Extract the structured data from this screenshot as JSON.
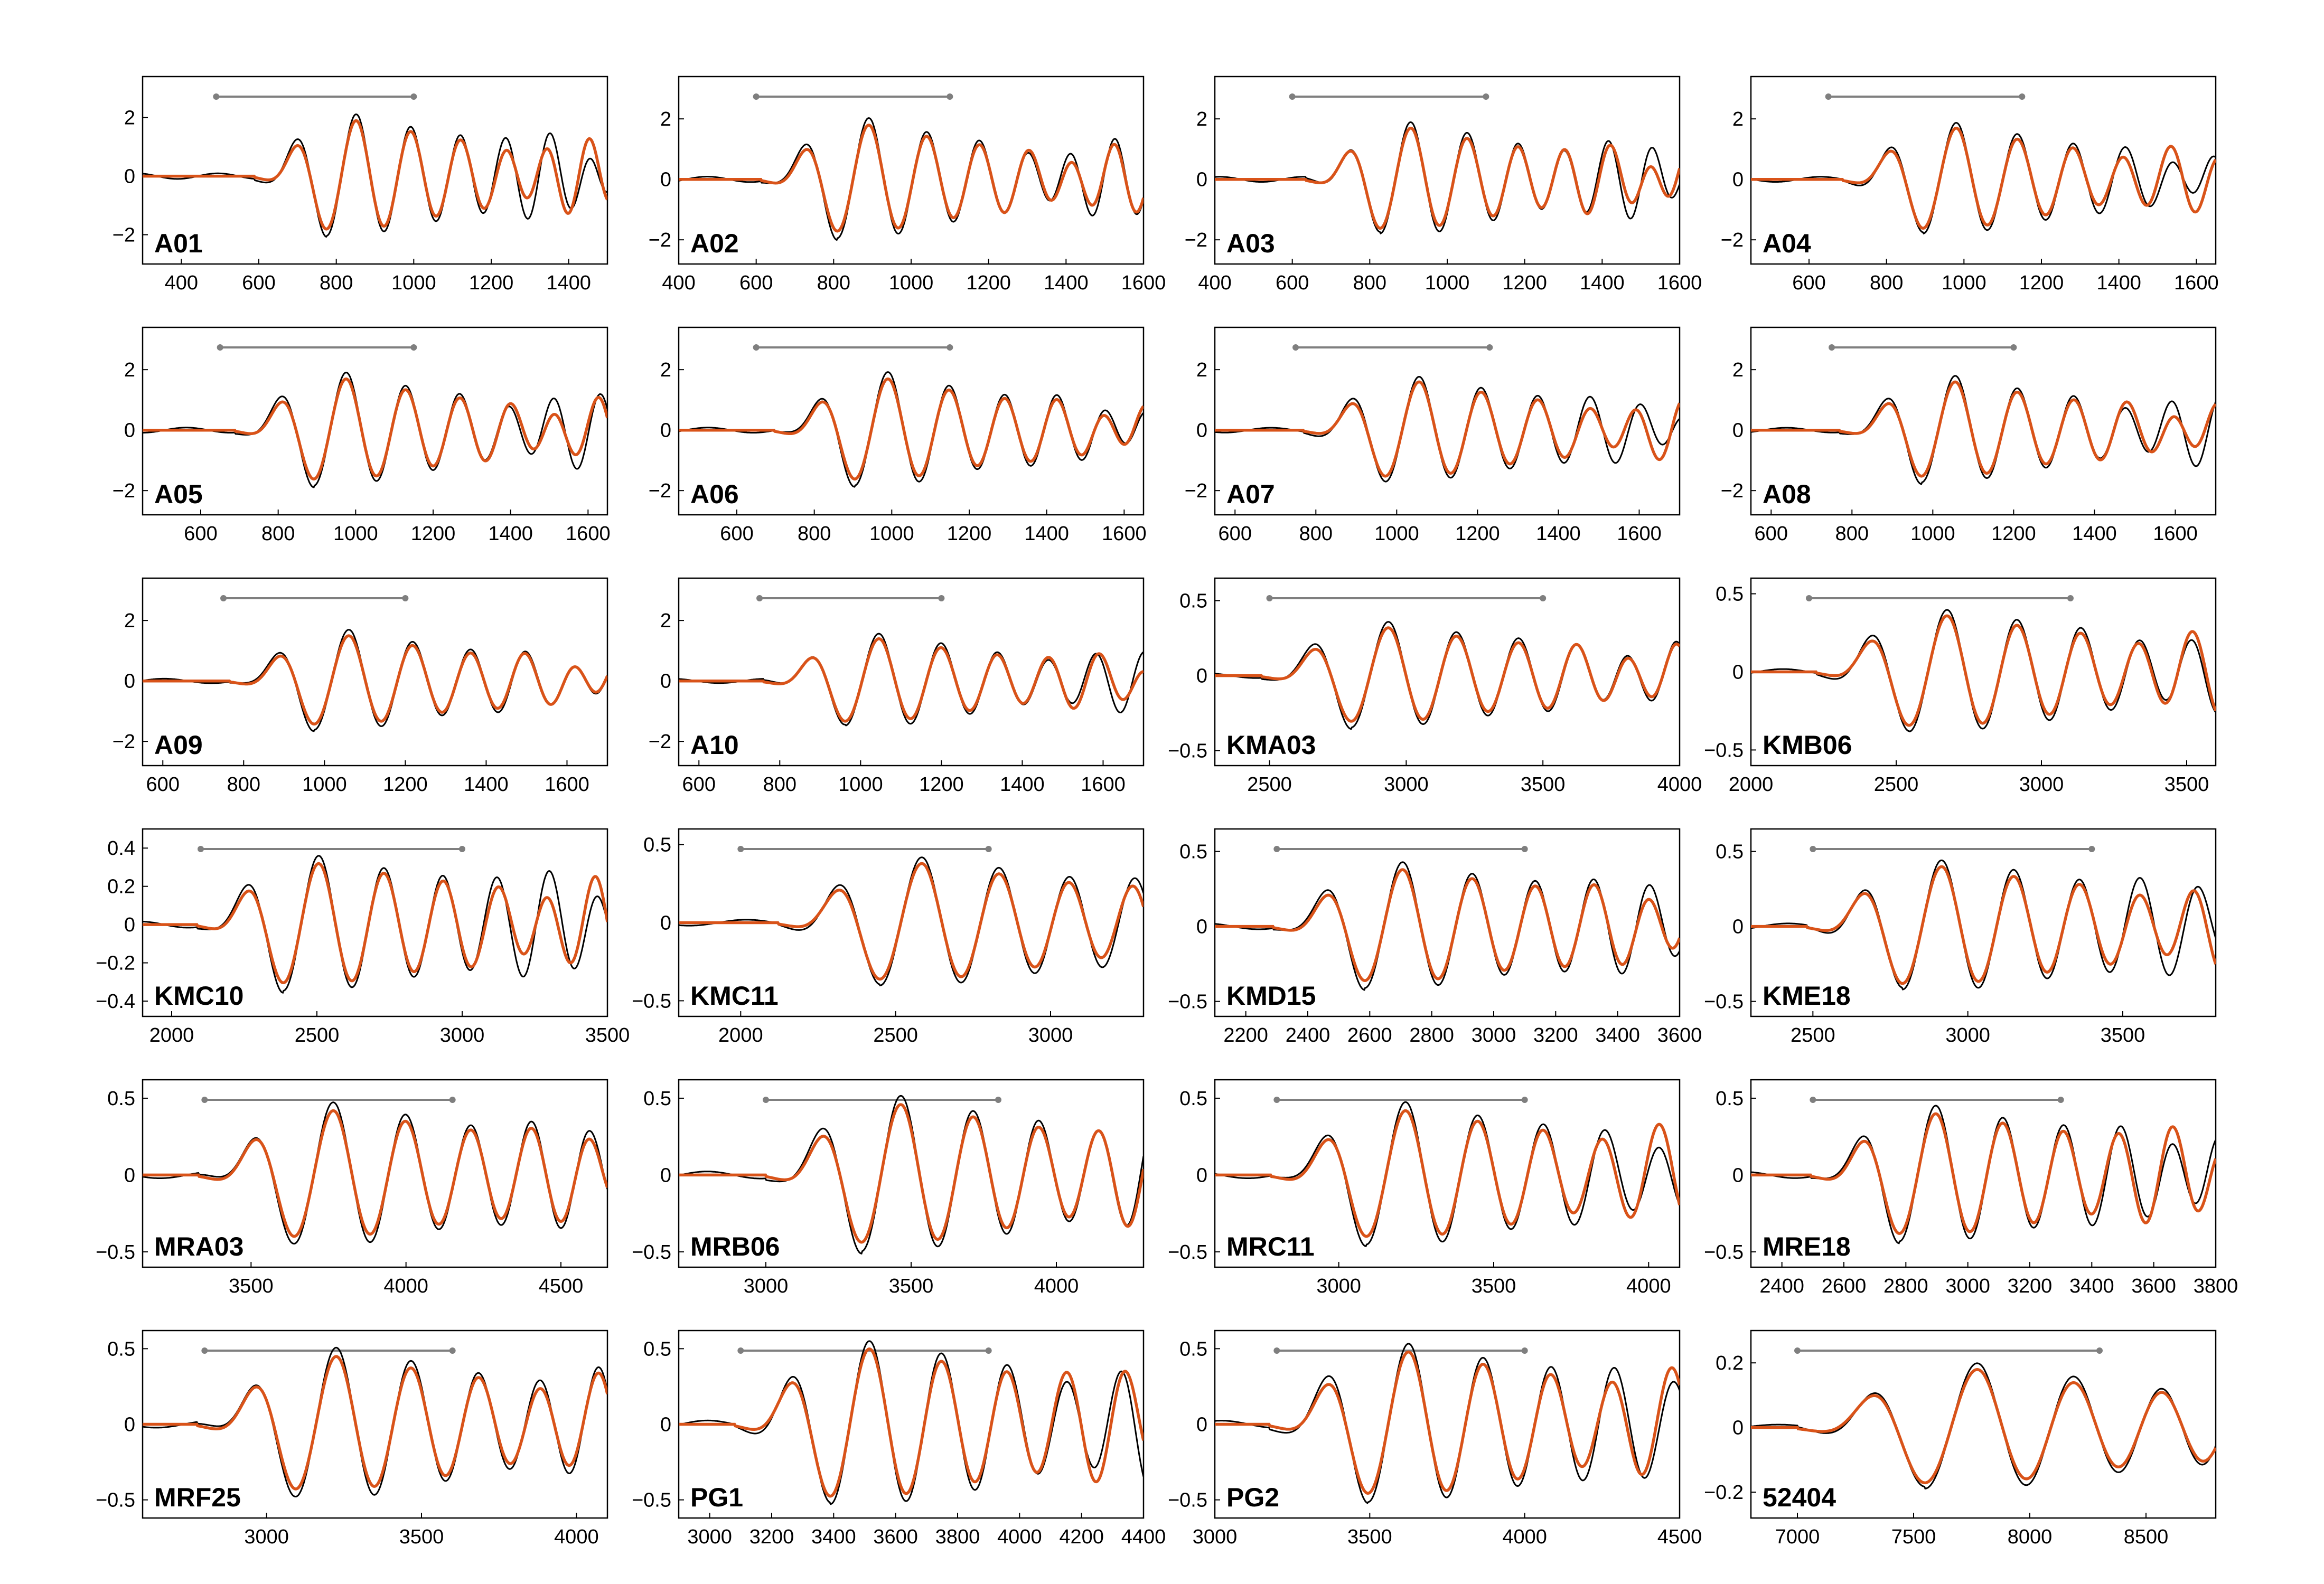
{
  "colors": {
    "observed": "#000000",
    "synthetic": "#d95319",
    "window": "#7f7f7f",
    "frame": "#000000"
  },
  "chart_data": [
    {
      "type": "line",
      "station": "A01",
      "xlim": [
        300,
        1500
      ],
      "ylim": [
        -3.0,
        3.4
      ],
      "xticks": [
        400,
        600,
        800,
        1000,
        1200,
        1400
      ],
      "yticks": [
        -2,
        0,
        2
      ],
      "window": [
        490,
        1000
      ],
      "onset": 690,
      "period": 170,
      "decay": 600,
      "amp": 1.9
    },
    {
      "type": "line",
      "station": "A02",
      "xlim": [
        400,
        1600
      ],
      "ylim": [
        -2.8,
        3.4
      ],
      "xticks": [
        400,
        600,
        800,
        1000,
        1200,
        1400,
        1600
      ],
      "yticks": [
        -2,
        0,
        2
      ],
      "window": [
        600,
        1100
      ],
      "onset": 720,
      "period": 180,
      "decay": 600,
      "amp": 1.8
    },
    {
      "type": "line",
      "station": "A03",
      "xlim": [
        400,
        1600
      ],
      "ylim": [
        -2.8,
        3.4
      ],
      "xticks": [
        400,
        600,
        800,
        1000,
        1200,
        1400,
        1600
      ],
      "yticks": [
        -2,
        0,
        2
      ],
      "window": [
        600,
        1100
      ],
      "onset": 740,
      "period": 175,
      "decay": 600,
      "amp": 1.7
    },
    {
      "type": "line",
      "station": "A04",
      "xlim": [
        450,
        1650
      ],
      "ylim": [
        -2.8,
        3.4
      ],
      "xticks": [
        600,
        800,
        1000,
        1200,
        1400,
        1600
      ],
      "yticks": [
        -2,
        0,
        2
      ],
      "window": [
        650,
        1150
      ],
      "onset": 800,
      "period": 190,
      "decay": 600,
      "amp": 1.7
    },
    {
      "type": "line",
      "station": "A05",
      "xlim": [
        450,
        1650
      ],
      "ylim": [
        -2.8,
        3.4
      ],
      "xticks": [
        600,
        800,
        1000,
        1200,
        1400,
        1600
      ],
      "yticks": [
        -2,
        0,
        2
      ],
      "window": [
        650,
        1150
      ],
      "onset": 800,
      "period": 185,
      "decay": 600,
      "amp": 1.7
    },
    {
      "type": "line",
      "station": "A06",
      "xlim": [
        450,
        1650
      ],
      "ylim": [
        -2.8,
        3.4
      ],
      "xticks": [
        600,
        800,
        1000,
        1200,
        1400,
        1600
      ],
      "yticks": [
        -2,
        0,
        2
      ],
      "window": [
        650,
        1150
      ],
      "onset": 810,
      "period": 190,
      "decay": 600,
      "amp": 1.7
    },
    {
      "type": "line",
      "station": "A07",
      "xlim": [
        550,
        1700
      ],
      "ylim": [
        -2.8,
        3.4
      ],
      "xticks": [
        600,
        800,
        1000,
        1200,
        1400,
        1600
      ],
      "yticks": [
        -2,
        0,
        2
      ],
      "window": [
        750,
        1230
      ],
      "onset": 880,
      "period": 185,
      "decay": 600,
      "amp": 1.6
    },
    {
      "type": "line",
      "station": "A08",
      "xlim": [
        550,
        1700
      ],
      "ylim": [
        -2.8,
        3.4
      ],
      "xticks": [
        600,
        800,
        1000,
        1200,
        1400,
        1600
      ],
      "yticks": [
        -2,
        0,
        2
      ],
      "window": [
        750,
        1200
      ],
      "onset": 880,
      "period": 185,
      "decay": 600,
      "amp": 1.6
    },
    {
      "type": "line",
      "station": "A09",
      "xlim": [
        550,
        1700
      ],
      "ylim": [
        -2.8,
        3.4
      ],
      "xticks": [
        600,
        800,
        1000,
        1200,
        1400,
        1600
      ],
      "yticks": [
        -2,
        0,
        2
      ],
      "window": [
        750,
        1200
      ],
      "onset": 880,
      "period": 190,
      "decay": 600,
      "amp": 1.5
    },
    {
      "type": "line",
      "station": "A10",
      "xlim": [
        550,
        1700
      ],
      "ylim": [
        -2.8,
        3.4
      ],
      "xticks": [
        600,
        800,
        1000,
        1200,
        1400,
        1600
      ],
      "yticks": [
        -2,
        0,
        2
      ],
      "window": [
        750,
        1200
      ],
      "onset": 870,
      "period": 185,
      "decay": 600,
      "amp": 1.4
    },
    {
      "type": "line",
      "station": "KMA03",
      "xlim": [
        2300,
        4000
      ],
      "ylim": [
        -0.6,
        0.65
      ],
      "xticks": [
        2500,
        3000,
        3500,
        4000
      ],
      "yticks": [
        -0.5,
        0,
        0.5
      ],
      "window": [
        2500,
        3500
      ],
      "onset": 2650,
      "period": 300,
      "decay": 1200,
      "amp": 0.32
    },
    {
      "type": "line",
      "station": "KMB06",
      "xlim": [
        2000,
        3600
      ],
      "ylim": [
        -0.6,
        0.6
      ],
      "xticks": [
        2000,
        2500,
        3000,
        3500
      ],
      "yticks": [
        -0.5,
        0,
        0.5
      ],
      "window": [
        2200,
        3100
      ],
      "onset": 2400,
      "period": 290,
      "decay": 1200,
      "amp": 0.36
    },
    {
      "type": "line",
      "station": "KMC10",
      "xlim": [
        1900,
        3500
      ],
      "ylim": [
        -0.48,
        0.5
      ],
      "xticks": [
        2000,
        2500,
        3000,
        3500
      ],
      "yticks": [
        -0.4,
        -0.2,
        0,
        0.2,
        0.4
      ],
      "window": [
        2100,
        3000
      ],
      "onset": 2250,
      "period": 270,
      "decay": 1200,
      "amp": 0.32
    },
    {
      "type": "line",
      "station": "KMC11",
      "xlim": [
        1800,
        3300
      ],
      "ylim": [
        -0.6,
        0.6
      ],
      "xticks": [
        2000,
        2500,
        3000
      ],
      "yticks": [
        -0.5,
        0,
        0.5
      ],
      "window": [
        2000,
        2800
      ],
      "onset": 2300,
      "period": 300,
      "decay": 1200,
      "amp": 0.38
    },
    {
      "type": "line",
      "station": "KMD15",
      "xlim": [
        2100,
        3600
      ],
      "ylim": [
        -0.6,
        0.65
      ],
      "xticks": [
        2200,
        2400,
        2600,
        2800,
        3000,
        3200,
        3400,
        3600
      ],
      "yticks": [
        -0.5,
        0,
        0.5
      ],
      "window": [
        2300,
        3100
      ],
      "onset": 2450,
      "period": 270,
      "decay": 1200,
      "amp": 0.38
    },
    {
      "type": "line",
      "station": "KME18",
      "xlim": [
        2300,
        3800
      ],
      "ylim": [
        -0.6,
        0.65
      ],
      "xticks": [
        2500,
        3000,
        3500
      ],
      "yticks": [
        -0.5,
        0,
        0.5
      ],
      "window": [
        2500,
        3400
      ],
      "onset": 2650,
      "period": 280,
      "decay": 1200,
      "amp": 0.4
    },
    {
      "type": "line",
      "station": "MRA03",
      "xlim": [
        3150,
        4650
      ],
      "ylim": [
        -0.6,
        0.62
      ],
      "xticks": [
        3500,
        4000,
        4500
      ],
      "yticks": [
        -0.5,
        0,
        0.5
      ],
      "window": [
        3350,
        4150
      ],
      "onset": 3500,
      "period": 280,
      "decay": 1200,
      "amp": 0.42
    },
    {
      "type": "line",
      "station": "MRB06",
      "xlim": [
        2700,
        4300
      ],
      "ylim": [
        -0.6,
        0.62
      ],
      "xticks": [
        3000,
        3500,
        4000
      ],
      "yticks": [
        -0.5,
        0,
        0.5
      ],
      "window": [
        3000,
        3800
      ],
      "onset": 3180,
      "period": 300,
      "decay": 1200,
      "amp": 0.46
    },
    {
      "type": "line",
      "station": "MRC11",
      "xlim": [
        2600,
        4100
      ],
      "ylim": [
        -0.6,
        0.62
      ],
      "xticks": [
        3000,
        3500,
        4000
      ],
      "yticks": [
        -0.5,
        0,
        0.5
      ],
      "window": [
        2800,
        3600
      ],
      "onset": 2950,
      "period": 280,
      "decay": 1200,
      "amp": 0.42
    },
    {
      "type": "line",
      "station": "MRE18",
      "xlim": [
        2300,
        3800
      ],
      "ylim": [
        -0.6,
        0.62
      ],
      "xticks": [
        2400,
        2600,
        2800,
        3000,
        3200,
        3400,
        3600,
        3800
      ],
      "yticks": [
        -0.5,
        0,
        0.5
      ],
      "window": [
        2500,
        3300
      ],
      "onset": 2650,
      "period": 260,
      "decay": 1200,
      "amp": 0.4
    },
    {
      "type": "line",
      "station": "MRF25",
      "xlim": [
        2600,
        4100
      ],
      "ylim": [
        -0.62,
        0.62
      ],
      "xticks": [
        3000,
        3500,
        4000
      ],
      "yticks": [
        -0.5,
        0,
        0.5
      ],
      "window": [
        2800,
        3600
      ],
      "onset": 2950,
      "period": 290,
      "decay": 1200,
      "amp": 0.45
    },
    {
      "type": "line",
      "station": "PG1",
      "xlim": [
        2900,
        4400
      ],
      "ylim": [
        -0.62,
        0.62
      ],
      "xticks": [
        3000,
        3200,
        3400,
        3600,
        3800,
        4000,
        4200,
        4400
      ],
      "yticks": [
        -0.5,
        0,
        0.5
      ],
      "window": [
        3100,
        3900
      ],
      "onset": 3250,
      "period": 280,
      "decay": 1200,
      "amp": 0.5
    },
    {
      "type": "line",
      "station": "PG2",
      "xlim": [
        3000,
        4500
      ],
      "ylim": [
        -0.62,
        0.62
      ],
      "xticks": [
        3000,
        3500,
        4000,
        4500
      ],
      "yticks": [
        -0.5,
        0,
        0.5
      ],
      "window": [
        3200,
        4000
      ],
      "onset": 3350,
      "period": 290,
      "decay": 1200,
      "amp": 0.48
    },
    {
      "type": "line",
      "station": "52404",
      "xlim": [
        6800,
        8800
      ],
      "ylim": [
        -0.28,
        0.3
      ],
      "xticks": [
        7000,
        7500,
        8000,
        8500
      ],
      "yticks": [
        -0.2,
        0,
        0.2
      ],
      "window": [
        7000,
        8300
      ],
      "onset": 7300,
      "period": 500,
      "decay": 1500,
      "amp": 0.18
    }
  ]
}
